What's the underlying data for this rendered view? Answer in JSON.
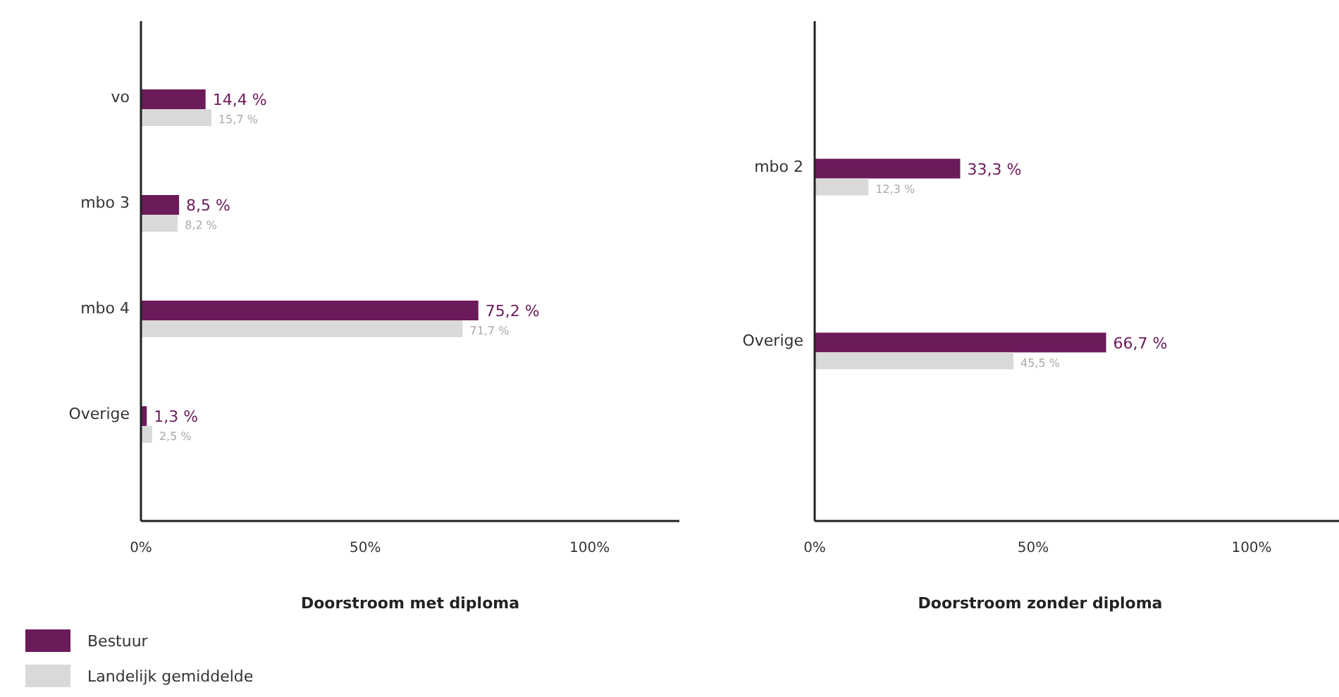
{
  "chart_data": [
    {
      "type": "bar",
      "orientation": "horizontal",
      "xlabel": "Doorstroom met diploma",
      "categories": [
        "vo",
        "mbo 3",
        "mbo 4",
        "Overige"
      ],
      "series": [
        {
          "name": "Bestuur",
          "color": "#6b1a5a",
          "values": [
            14.4,
            8.5,
            75.2,
            1.3
          ],
          "value_labels": [
            "14,4 %",
            "8,5 %",
            "75,2 %",
            "1,3 %"
          ]
        },
        {
          "name": "Landelijk gemiddelde",
          "color": "#d9d9d9",
          "values": [
            15.7,
            8.2,
            71.7,
            2.5
          ],
          "value_labels": [
            "15,7 %",
            "8,2 %",
            "71,7 %",
            "2,5 %"
          ]
        }
      ],
      "xlim": [
        0,
        120
      ],
      "xticks": [
        {
          "value": 0,
          "label": "0%"
        },
        {
          "value": 50,
          "label": "50%"
        },
        {
          "value": 100,
          "label": "100%"
        }
      ],
      "grid": false,
      "legend": "bottom left"
    },
    {
      "type": "bar",
      "orientation": "horizontal",
      "xlabel": "Doorstroom zonder diploma",
      "categories": [
        "mbo 2",
        "Overige"
      ],
      "series": [
        {
          "color": "#6b1a5a",
          "values": [
            33.3,
            66.7
          ],
          "value_labels": [
            "33,3 %",
            "66,7 %"
          ]
        },
        {
          "color": "#d9d9d9",
          "values": [
            12.3,
            45.5
          ],
          "value_labels": [
            "12,3 %",
            "45,5 %"
          ]
        }
      ],
      "xlim": [
        0,
        120
      ],
      "xticks": [
        {
          "value": 0,
          "label": "0%"
        },
        {
          "value": 50,
          "label": "50%"
        },
        {
          "value": 100,
          "label": "100%"
        }
      ],
      "grid": false
    }
  ]
}
